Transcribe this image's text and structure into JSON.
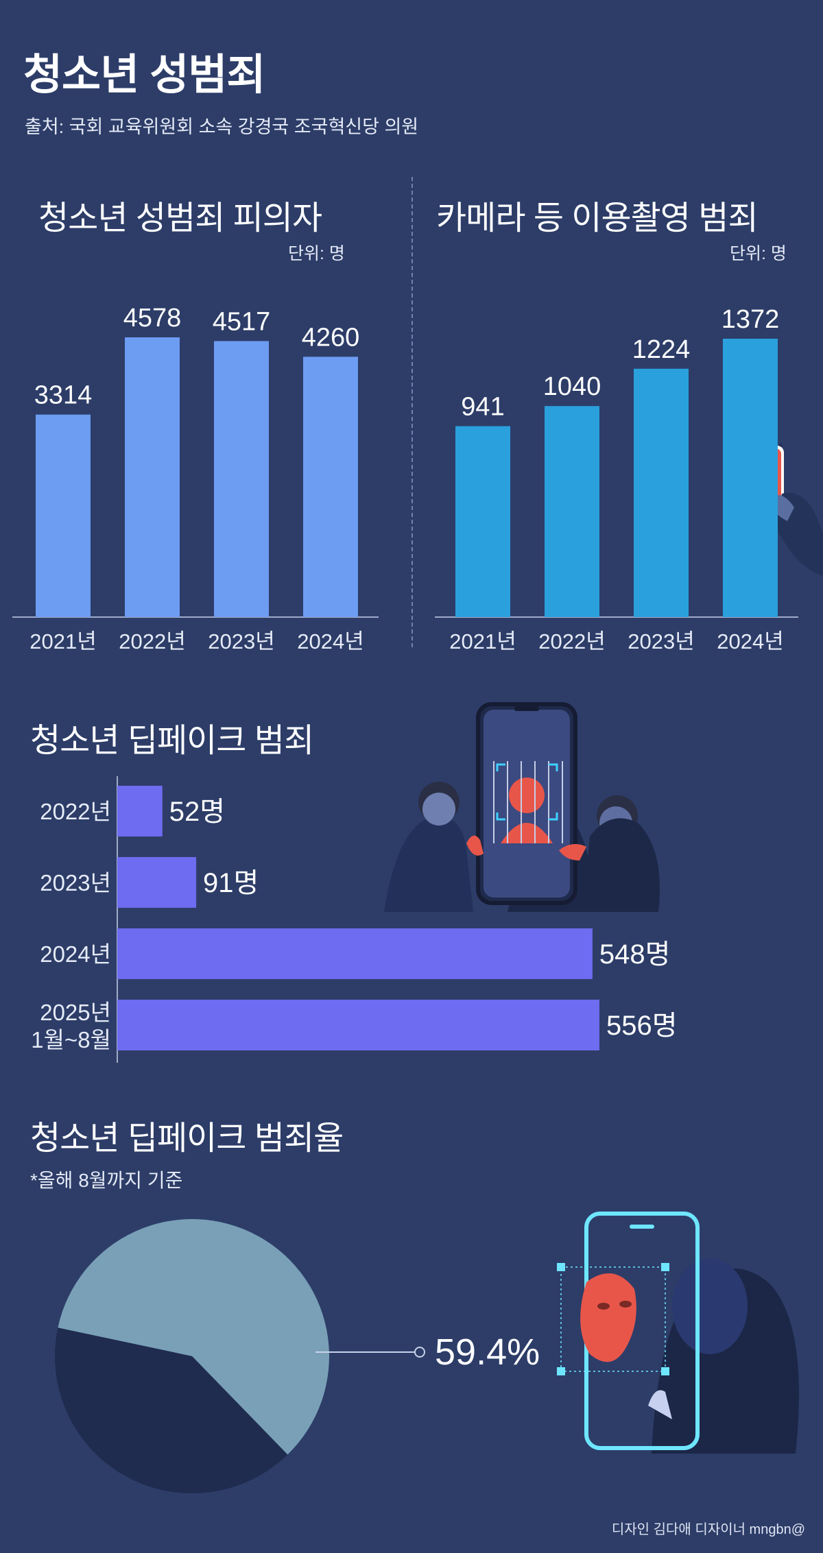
{
  "title": "청소년 성범죄",
  "source": "출처: 국회 교육위원회 소속 강경국 조국혁신당 의원",
  "credit": "디자인 김다애 디자이너 mngbn@",
  "colors": {
    "background": "#2d3d68",
    "bar_light_blue": "#6d9cf3",
    "bar_cyan": "#2aa0dd",
    "bar_violet": "#6e6cf0",
    "pie_light": "#79a0b7",
    "pie_dark": "#1f2c4f"
  },
  "illustrations": [
    "phone-camera-hand-icon",
    "deepfake-phone-people-icon",
    "deepfake-mask-phone-icon"
  ],
  "chart_data": [
    {
      "type": "bar",
      "title": "청소년 성범죄 피의자",
      "unit": "단위: 명",
      "categories": [
        "2021년",
        "2022년",
        "2023년",
        "2024년"
      ],
      "values": [
        3314,
        4578,
        4517,
        4260
      ],
      "ylim": [
        0,
        4578
      ],
      "grid": false,
      "color": "#6d9cf3"
    },
    {
      "type": "bar",
      "title": "카메라 등 이용촬영 범죄",
      "unit": "단위: 명",
      "categories": [
        "2021년",
        "2022년",
        "2023년",
        "2024년"
      ],
      "values": [
        941,
        1040,
        1224,
        1372
      ],
      "ylim": [
        0,
        1372
      ],
      "grid": false,
      "color": "#2aa0dd"
    },
    {
      "type": "bar",
      "orientation": "horizontal",
      "title": "청소년 딥페이크 범죄",
      "categories": [
        "2022년",
        "2023년",
        "2024년",
        "2025년\n1월~8월"
      ],
      "values": [
        52,
        91,
        548,
        556
      ],
      "value_labels": [
        "52명",
        "91명",
        "548명",
        "556명"
      ],
      "xlim": [
        0,
        556
      ],
      "grid": false,
      "color": "#6e6cf0"
    },
    {
      "type": "pie",
      "title": "청소년 딥페이크 범죄율",
      "subtitle": "*올해 8월까지 기준",
      "labels": [
        "",
        ""
      ],
      "values": [
        59.4,
        40.6
      ],
      "value_label": "59.4%",
      "colors": [
        "#79a0b7",
        "#1f2c4f"
      ]
    }
  ]
}
